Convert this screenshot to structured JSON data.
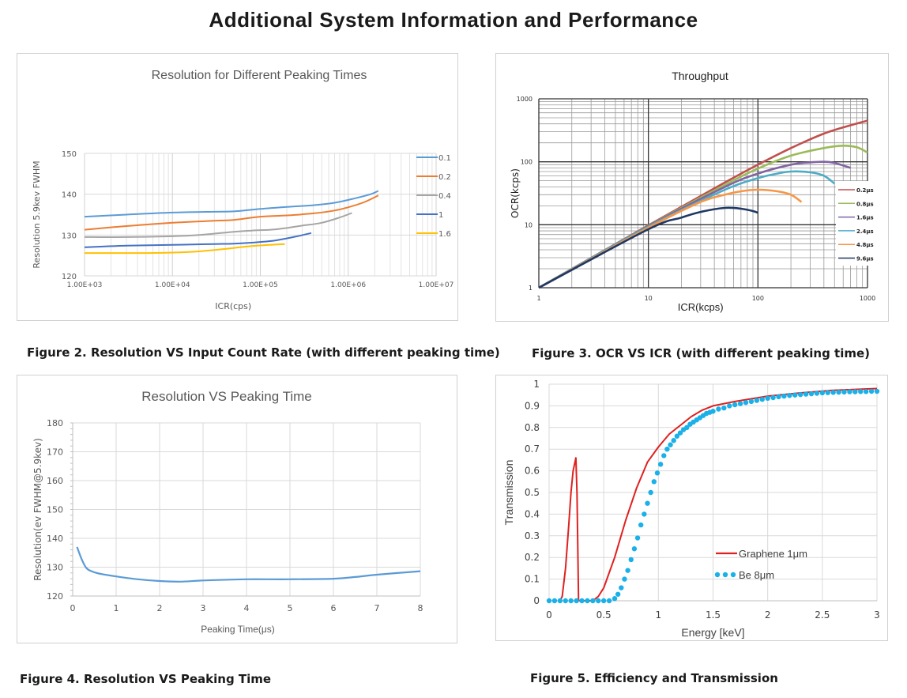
{
  "page_title": "Additional System Information and Performance",
  "captions": {
    "fig2": "Figure 2. Resolution VS Input Count Rate (with different peaking time)",
    "fig3": "Figure 3. OCR VS ICR (with different peaking time)",
    "fig4": "Figure 4. Resolution VS Peaking Time",
    "fig5": "Figure 5. Efficiency and Transmission"
  },
  "chart_data": [
    {
      "id": "fig2",
      "type": "line",
      "title": "Resolution for Different Peaking Times",
      "xlabel": "ICR(cps)",
      "ylabel": "Resolution 5.9kev FWHM",
      "xscale": "log",
      "xlim": [
        1000,
        10000000
      ],
      "ylim": [
        120,
        150
      ],
      "xticks": [
        1000,
        10000,
        100000,
        1000000,
        10000000
      ],
      "xtick_labels": [
        "1.00E+03",
        "1.00E+04",
        "1.00E+05",
        "1.00E+06",
        "1.00E+07"
      ],
      "yticks": [
        120,
        130,
        140,
        150
      ],
      "ytick_labels": [
        "120",
        "130",
        "140",
        "150"
      ],
      "grid": true,
      "legend": "right",
      "series": [
        {
          "name": "0.1",
          "color": "#5b9bd5",
          "x": [
            1000,
            3000,
            10000,
            30000,
            50000,
            100000,
            200000,
            400000,
            700000,
            1200000,
            1800000,
            2200000
          ],
          "y": [
            134.5,
            135.0,
            135.5,
            135.7,
            135.8,
            136.4,
            136.9,
            137.3,
            137.9,
            139.0,
            140.0,
            140.8
          ]
        },
        {
          "name": "0.2",
          "color": "#ed7d31",
          "x": [
            1000,
            3000,
            10000,
            30000,
            50000,
            100000,
            200000,
            400000,
            700000,
            1000000,
            1500000,
            2200000
          ],
          "y": [
            131.3,
            132.2,
            133.0,
            133.5,
            133.7,
            134.5,
            134.8,
            135.3,
            136.0,
            136.8,
            138.0,
            139.7
          ]
        },
        {
          "name": "0.4",
          "color": "#a5a5a5",
          "x": [
            1000,
            3000,
            10000,
            20000,
            50000,
            80000,
            150000,
            300000,
            500000,
            800000,
            1100000
          ],
          "y": [
            129.5,
            129.5,
            129.7,
            130.0,
            130.8,
            131.1,
            131.4,
            132.3,
            133.0,
            134.3,
            135.4
          ]
        },
        {
          "name": "1",
          "color": "#4472c4",
          "x": [
            1000,
            3000,
            10000,
            30000,
            50000,
            100000,
            150000,
            250000,
            380000
          ],
          "y": [
            127.0,
            127.4,
            127.6,
            127.8,
            127.9,
            128.3,
            128.7,
            129.6,
            130.5
          ]
        },
        {
          "name": "1.6",
          "color": "#ffc000",
          "x": [
            1000,
            5000,
            10000,
            20000,
            40000,
            80000,
            190000
          ],
          "y": [
            125.6,
            125.6,
            125.7,
            126.0,
            126.6,
            127.3,
            127.8
          ]
        }
      ]
    },
    {
      "id": "fig3",
      "type": "line",
      "title": "Throughput",
      "xlabel": "ICR(kcps)",
      "ylabel": "OCR(kcps)",
      "xscale": "log",
      "yscale": "log",
      "xlim": [
        1,
        1000
      ],
      "ylim": [
        1,
        1000
      ],
      "xticks": [
        1,
        10,
        100,
        1000
      ],
      "xtick_labels": [
        "1",
        "10",
        "100",
        "1000"
      ],
      "yticks": [
        1,
        10,
        100,
        1000
      ],
      "ytick_labels": [
        "1",
        "10",
        "100",
        "1000"
      ],
      "grid": true,
      "legend": "right",
      "series": [
        {
          "name": "0.2μs",
          "color": "#c0504d",
          "x": [
            1,
            10,
            50,
            100,
            200,
            400,
            700,
            1000
          ],
          "y": [
            1,
            9.8,
            47,
            90,
            165,
            280,
            380,
            450
          ]
        },
        {
          "name": "0.8μs",
          "color": "#9bbb59",
          "x": [
            1,
            10,
            50,
            100,
            200,
            400,
            600,
            800,
            1000
          ],
          "y": [
            1,
            9.6,
            43,
            78,
            125,
            165,
            180,
            170,
            140
          ]
        },
        {
          "name": "1.6μs",
          "color": "#8064a2",
          "x": [
            1,
            10,
            50,
            100,
            200,
            300,
            400,
            500,
            700
          ],
          "y": [
            1,
            9.5,
            40,
            65,
            90,
            98,
            100,
            96,
            80
          ]
        },
        {
          "name": "2.4μs",
          "color": "#4bacc6",
          "x": [
            1,
            10,
            50,
            100,
            150,
            200,
            300,
            400,
            500
          ],
          "y": [
            1,
            9.3,
            36,
            55,
            65,
            70,
            68,
            60,
            45
          ]
        },
        {
          "name": "4.8μs",
          "color": "#f79646",
          "x": [
            1,
            10,
            30,
            50,
            70,
            100,
            150,
            200,
            250
          ],
          "y": [
            1,
            9,
            23,
            30,
            34,
            36,
            34,
            30,
            23
          ]
        },
        {
          "name": "9.6μs",
          "color": "#1f3864",
          "x": [
            1,
            10,
            20,
            30,
            50,
            70,
            90,
            100
          ],
          "y": [
            1,
            8.5,
            13,
            16,
            18.5,
            18,
            16.5,
            15.5
          ]
        }
      ]
    },
    {
      "id": "fig4",
      "type": "line",
      "title": "Resolution VS Peaking Time",
      "xlabel": "Peaking Time(μs)",
      "ylabel": "Resolution(ev FWHM@5.9kev)",
      "xlim": [
        0,
        8
      ],
      "ylim": [
        120,
        180
      ],
      "xticks": [
        0,
        1,
        2,
        3,
        4,
        5,
        6,
        7,
        8
      ],
      "xtick_labels": [
        "0",
        "1",
        "2",
        "3",
        "4",
        "5",
        "6",
        "7",
        "8"
      ],
      "yticks": [
        120,
        130,
        140,
        150,
        160,
        170,
        180
      ],
      "ytick_labels": [
        "120",
        "130",
        "140",
        "150",
        "160",
        "170",
        "180"
      ],
      "grid": true,
      "series": [
        {
          "name": "",
          "color": "#5b9bd5",
          "x": [
            0.1,
            0.2,
            0.3,
            0.4,
            0.6,
            1.0,
            1.5,
            2.0,
            2.5,
            3.0,
            4.0,
            5.0,
            6.0,
            6.5,
            7.0,
            8.0
          ],
          "y": [
            137,
            133,
            130,
            128.8,
            127.8,
            126.8,
            125.8,
            125.2,
            125.0,
            125.4,
            125.8,
            125.8,
            126.0,
            126.6,
            127.4,
            128.6
          ]
        }
      ]
    },
    {
      "id": "fig5",
      "type": "line",
      "title": "",
      "xlabel": "Energy [keV]",
      "ylabel": "Transmission",
      "xlim": [
        0,
        3
      ],
      "ylim": [
        0,
        1
      ],
      "xticks": [
        0,
        0.5,
        1,
        1.5,
        2,
        2.5,
        3
      ],
      "xtick_labels": [
        "0",
        "0.5",
        "1",
        "1.5",
        "2",
        "2.5",
        "3"
      ],
      "yticks": [
        0,
        0.1,
        0.2,
        0.3,
        0.4,
        0.5,
        0.6,
        0.7,
        0.8,
        0.9,
        1
      ],
      "ytick_labels": [
        "0",
        "0.1",
        "0.2",
        "0.3",
        "0.4",
        "0.5",
        "0.6",
        "0.7",
        "0.8",
        "0.9",
        "1"
      ],
      "grid": true,
      "legend": "inside-lower-right",
      "series": [
        {
          "name": "Graphene 1μm",
          "style": "line",
          "color": "#e02020",
          "x": [
            0.1,
            0.12,
            0.15,
            0.18,
            0.2,
            0.22,
            0.245,
            0.255,
            0.27,
            0.3,
            0.35,
            0.4,
            0.45,
            0.5,
            0.6,
            0.7,
            0.8,
            0.9,
            1.0,
            1.1,
            1.2,
            1.3,
            1.4,
            1.5,
            1.7,
            2.0,
            2.3,
            2.6,
            3.0
          ],
          "y": [
            0,
            0.02,
            0.15,
            0.35,
            0.5,
            0.6,
            0.66,
            0.5,
            0,
            0,
            0,
            0,
            0.02,
            0.06,
            0.2,
            0.37,
            0.52,
            0.64,
            0.71,
            0.77,
            0.81,
            0.85,
            0.88,
            0.9,
            0.92,
            0.945,
            0.96,
            0.972,
            0.98
          ]
        },
        {
          "name": "Be 8μm",
          "style": "dots",
          "color": "#1ab0e8",
          "x": [
            0,
            0.05,
            0.1,
            0.15,
            0.2,
            0.25,
            0.3,
            0.35,
            0.4,
            0.45,
            0.5,
            0.55,
            0.6,
            0.63,
            0.66,
            0.69,
            0.72,
            0.75,
            0.78,
            0.81,
            0.84,
            0.87,
            0.9,
            0.93,
            0.96,
            0.99,
            1.02,
            1.05,
            1.08,
            1.11,
            1.14,
            1.17,
            1.2,
            1.23,
            1.26,
            1.29,
            1.32,
            1.35,
            1.38,
            1.41,
            1.44,
            1.47,
            1.5,
            1.55,
            1.6,
            1.65,
            1.7,
            1.75,
            1.8,
            1.85,
            1.9,
            1.95,
            2.0,
            2.05,
            2.1,
            2.15,
            2.2,
            2.25,
            2.3,
            2.35,
            2.4,
            2.45,
            2.5,
            2.55,
            2.6,
            2.65,
            2.7,
            2.75,
            2.8,
            2.85,
            2.9,
            2.95,
            3.0
          ],
          "y": [
            0,
            0,
            0,
            0,
            0,
            0,
            0,
            0,
            0,
            0,
            0,
            0,
            0.01,
            0.03,
            0.06,
            0.1,
            0.14,
            0.19,
            0.24,
            0.29,
            0.35,
            0.4,
            0.45,
            0.5,
            0.55,
            0.59,
            0.63,
            0.67,
            0.7,
            0.72,
            0.74,
            0.76,
            0.775,
            0.79,
            0.8,
            0.815,
            0.825,
            0.835,
            0.845,
            0.855,
            0.865,
            0.87,
            0.875,
            0.885,
            0.89,
            0.9,
            0.905,
            0.91,
            0.915,
            0.92,
            0.925,
            0.93,
            0.935,
            0.938,
            0.942,
            0.945,
            0.948,
            0.95,
            0.952,
            0.954,
            0.956,
            0.958,
            0.96,
            0.961,
            0.962,
            0.963,
            0.964,
            0.965,
            0.965,
            0.966,
            0.966,
            0.967,
            0.967
          ]
        }
      ]
    }
  ]
}
